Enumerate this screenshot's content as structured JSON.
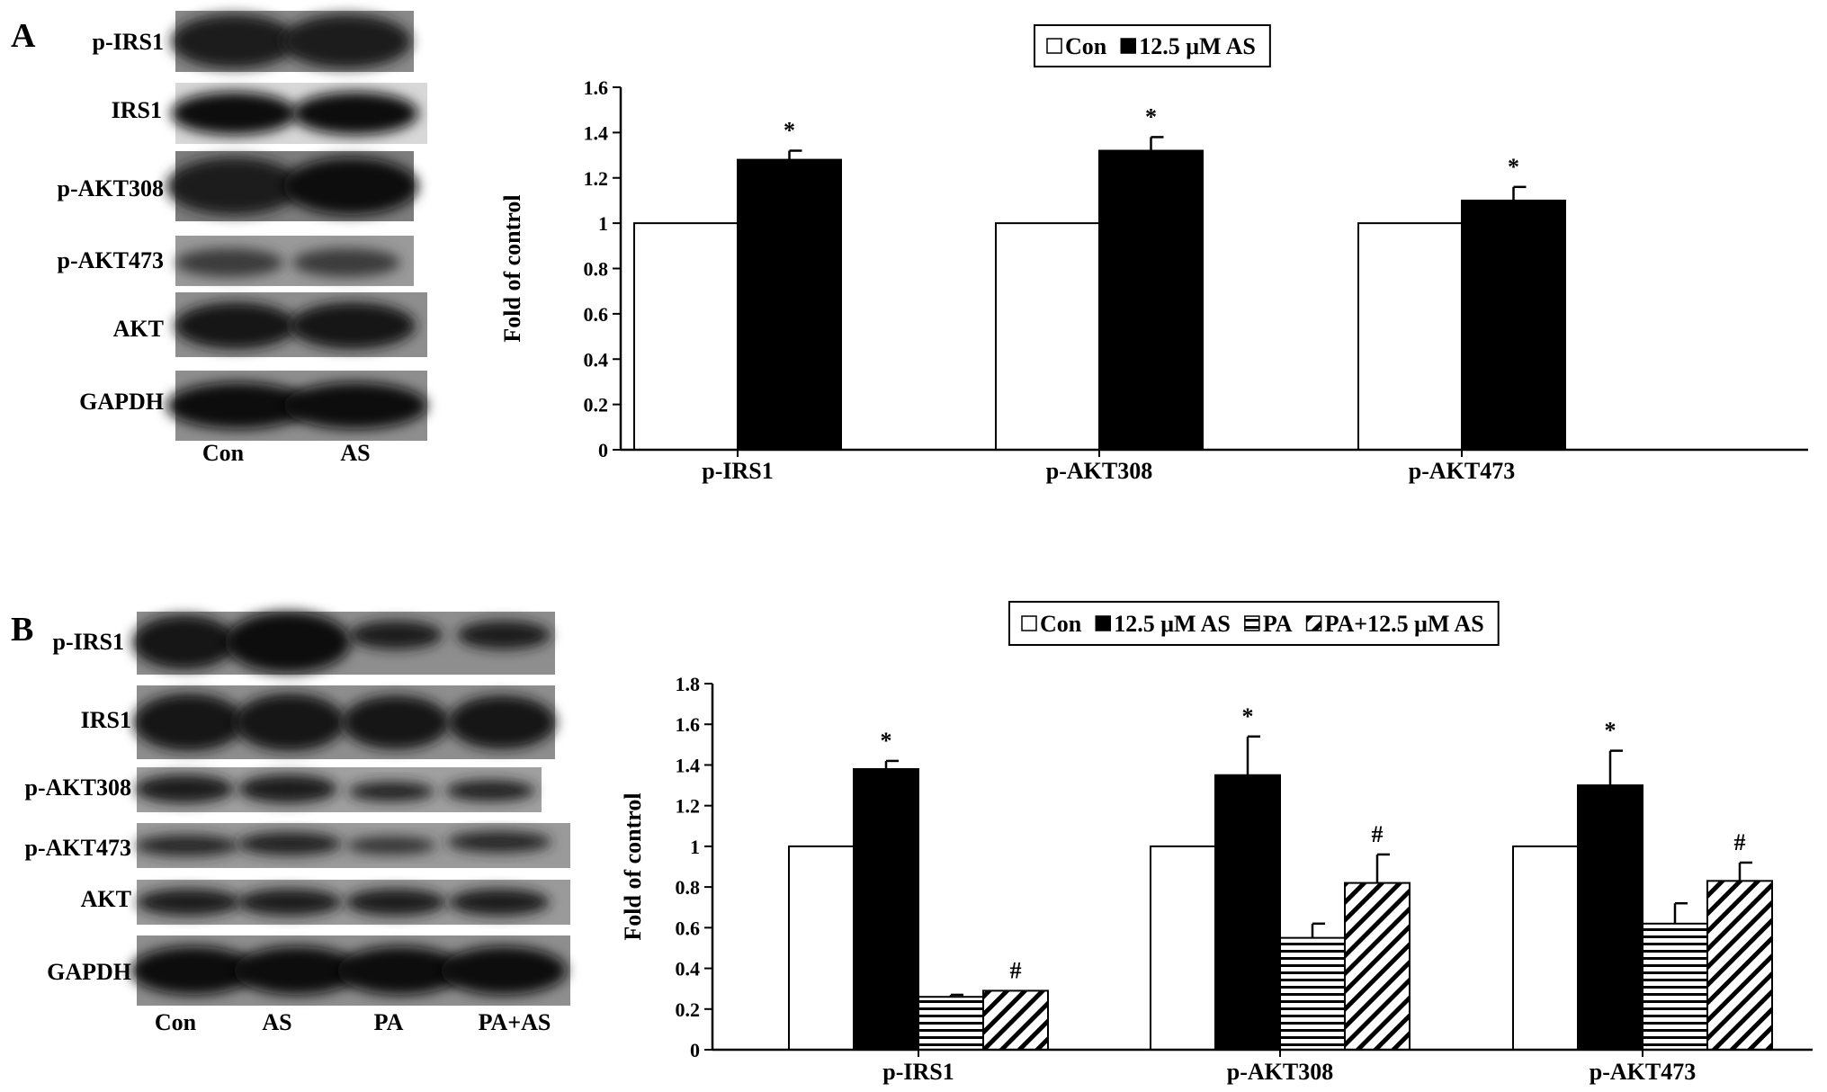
{
  "figure": {
    "panel_a": {
      "letter": "A",
      "blot": {
        "rows": [
          "p-IRS1",
          "IRS1",
          "p-AKT308",
          "p-AKT473",
          "AKT",
          "GAPDH"
        ],
        "lanes": [
          "Con",
          "AS"
        ]
      }
    },
    "panel_b": {
      "letter": "B",
      "blot": {
        "rows": [
          "p-IRS1",
          "IRS1",
          "p-AKT308",
          "p-AKT473",
          "AKT",
          "GAPDH"
        ],
        "lanes": [
          "Con",
          "AS",
          "PA",
          "PA+AS"
        ]
      }
    }
  },
  "chart_data": [
    {
      "type": "bar",
      "panel": "A",
      "title": "",
      "xlabel": "",
      "ylabel": "Fold of control",
      "ylim": [
        0,
        1.6
      ],
      "yticks": [
        "0",
        "0.2",
        "0.4",
        "0.6",
        "0.8",
        "1",
        "1.2",
        "1.4",
        "1.6"
      ],
      "categories": [
        "p-IRS1",
        "p-AKT308",
        "p-AKT473"
      ],
      "legend_position": "top-center",
      "series": [
        {
          "name": "Con",
          "fill": "white",
          "values": [
            1.0,
            1.0,
            1.0
          ],
          "errors": [
            0,
            0,
            0
          ],
          "marks": [
            "",
            "",
            ""
          ]
        },
        {
          "name": "12.5 μM AS",
          "fill": "black",
          "values": [
            1.28,
            1.32,
            1.1
          ],
          "errors": [
            0.04,
            0.06,
            0.06
          ],
          "marks": [
            "*",
            "*",
            "*"
          ]
        }
      ]
    },
    {
      "type": "bar",
      "panel": "B",
      "title": "",
      "xlabel": "",
      "ylabel": "Fold of control",
      "ylim": [
        0,
        1.8
      ],
      "yticks": [
        "0",
        "0.2",
        "0.4",
        "0.6",
        "0.8",
        "1",
        "1.2",
        "1.4",
        "1.6",
        "1.8"
      ],
      "categories": [
        "p-IRS1",
        "p-AKT308",
        "p-AKT473"
      ],
      "legend_position": "top-center",
      "series": [
        {
          "name": "Con",
          "fill": "white",
          "values": [
            1.0,
            1.0,
            1.0
          ],
          "errors": [
            0,
            0,
            0
          ],
          "marks": [
            "",
            "",
            ""
          ]
        },
        {
          "name": "12.5 μM AS",
          "fill": "black",
          "values": [
            1.38,
            1.35,
            1.3
          ],
          "errors": [
            0.04,
            0.19,
            0.17
          ],
          "marks": [
            "*",
            "*",
            "*"
          ]
        },
        {
          "name": "PA",
          "fill": "hstripe",
          "values": [
            0.26,
            0.55,
            0.62
          ],
          "errors": [
            0.01,
            0.07,
            0.1
          ],
          "marks": [
            "",
            "",
            ""
          ]
        },
        {
          "name": "PA+12.5 μM AS",
          "fill": "diag",
          "values": [
            0.29,
            0.82,
            0.83
          ],
          "errors": [
            0,
            0.14,
            0.09
          ],
          "marks": [
            "#",
            "#",
            "#"
          ]
        }
      ]
    }
  ],
  "colors": {
    "ink": "#000000",
    "paper": "#ffffff",
    "blot_bg": "#8e8e8e",
    "band": "#151515"
  }
}
